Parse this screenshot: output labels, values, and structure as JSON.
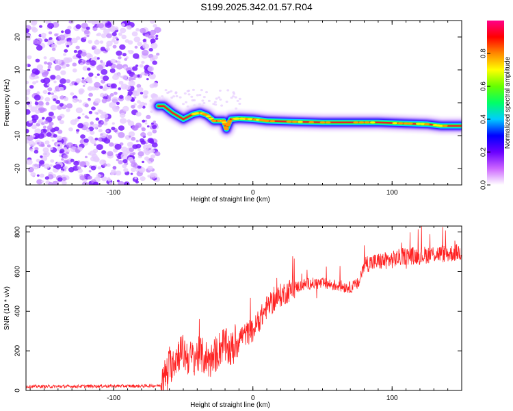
{
  "title": "S199.2025.342.01.57.R04",
  "chart_data": [
    {
      "type": "heatmap",
      "name": "spectrogram",
      "xlabel": "Height of straight line (km)",
      "ylabel": "Frequency (Hz)",
      "xlim": [
        -163,
        150
      ],
      "ylim": [
        -25,
        25
      ],
      "xticks": [
        -100,
        0,
        100
      ],
      "yticks": [
        -20,
        -10,
        0,
        10,
        20
      ],
      "noise_region_x": [
        -163,
        -68
      ],
      "ridge": {
        "x": [
          -68,
          -64,
          -58,
          -50,
          -43,
          -38,
          -33,
          -28,
          -24,
          -21,
          -19,
          -16,
          -10,
          0,
          10,
          30,
          50,
          70,
          90,
          110,
          125,
          135,
          150
        ],
        "y": [
          -1,
          -1,
          -3,
          -5,
          -3.5,
          -3,
          -3.8,
          -5.5,
          -5.5,
          -5.5,
          -8,
          -5,
          -4.8,
          -5,
          -5.5,
          -5.8,
          -6,
          -6,
          -6,
          -6.3,
          -6.5,
          -7,
          -7
        ]
      },
      "colorbar": {
        "label": "Normalized spectral amplitude",
        "ticks": [
          0.0,
          0.2,
          0.4,
          0.6,
          0.8
        ],
        "tick_labels": [
          "0.0",
          "0.2",
          "0.4",
          "0.6",
          "0.8"
        ],
        "colors": [
          "#ffffff",
          "#cc66ff",
          "#6a00ff",
          "#0000ff",
          "#00ccff",
          "#00ff66",
          "#66ff00",
          "#ffff00",
          "#ff8800",
          "#ff0000",
          "#ff0088"
        ]
      }
    },
    {
      "type": "line",
      "name": "snr",
      "xlabel": "Height of straight line (km)",
      "ylabel": "SNR (10 * v/v)",
      "xlim": [
        -163,
        150
      ],
      "ylim": [
        0,
        830
      ],
      "xticks": [
        -100,
        0,
        100
      ],
      "yticks": [
        0,
        200,
        400,
        600,
        800
      ],
      "color": "#ff2222",
      "x": [
        -163,
        -140,
        -110,
        -80,
        -66,
        -60,
        -52,
        -45,
        -38,
        -30,
        -22,
        -15,
        -10,
        0,
        10,
        20,
        30,
        40,
        50,
        60,
        70,
        76,
        80,
        90,
        100,
        110,
        120,
        130,
        140,
        150
      ],
      "y": [
        20,
        20,
        22,
        22,
        25,
        120,
        200,
        160,
        180,
        150,
        230,
        200,
        270,
        300,
        420,
        480,
        520,
        540,
        540,
        530,
        520,
        540,
        640,
        650,
        660,
        680,
        680,
        690,
        690,
        700
      ]
    }
  ]
}
